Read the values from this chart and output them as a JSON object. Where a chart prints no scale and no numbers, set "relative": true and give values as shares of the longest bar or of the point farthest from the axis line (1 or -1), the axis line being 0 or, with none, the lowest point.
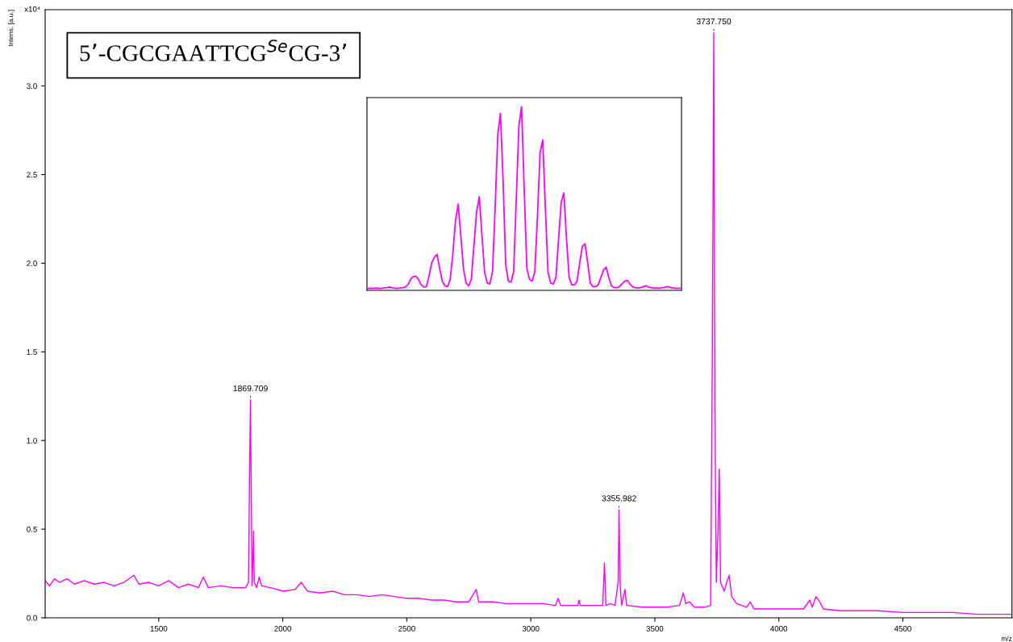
{
  "chart_data": [
    {
      "type": "line",
      "xlabel": "m/z",
      "ylabel": "Intens. [a.u.]",
      "annotations": [
        "5’-CGCGAATTCG$^{Se}$CG-3’",
        "x10⁴",
        {
          "text": "1869.709",
          "x": 1869.709,
          "y": 1.23
        },
        {
          "text": "3355.982",
          "x": 3355.982,
          "y": 0.61
        },
        {
          "text": "3737.750",
          "x": 3737.75,
          "y": 3.3
        }
      ],
      "xlim": [
        1042,
        4940
      ],
      "ylim": [
        0,
        3.43
      ],
      "xticks": [
        1500,
        2000,
        2500,
        3000,
        3500,
        4000,
        4500
      ],
      "yticks": [
        {
          "value": 0,
          "label": "0.0"
        },
        {
          "value": 0.5,
          "label": "0.5"
        },
        {
          "value": 1.0,
          "label": "1.0"
        },
        {
          "value": 1.5,
          "label": "1.5"
        },
        {
          "value": 2.0,
          "label": "2.0"
        },
        {
          "value": 2.5,
          "label": "2.5"
        },
        {
          "value": 3.0,
          "label": "3.0"
        }
      ],
      "series": [
        {
          "color": "#ff00ff",
          "x": [
            1042,
            1060,
            1080,
            1100,
            1130,
            1160,
            1200,
            1240,
            1280,
            1320,
            1360,
            1400,
            1420,
            1460,
            1500,
            1540,
            1580,
            1620,
            1660,
            1680,
            1700,
            1750,
            1800,
            1850,
            1862,
            1866,
            1869.709,
            1873,
            1876,
            1879,
            1882,
            1885,
            1895,
            1905,
            1915,
            1950,
            2000,
            2050,
            2075,
            2100,
            2150,
            2200,
            2250,
            2300,
            2350,
            2400,
            2450,
            2500,
            2550,
            2600,
            2650,
            2700,
            2750,
            2780,
            2790,
            2850,
            2900,
            2950,
            3000,
            3050,
            3100,
            3110,
            3120,
            3190,
            3195,
            3200,
            3250,
            3290,
            3297,
            3303,
            3320,
            3340,
            3352,
            3355.982,
            3360,
            3366,
            3380,
            3386,
            3450,
            3500,
            3550,
            3600,
            3615,
            3625,
            3640,
            3660,
            3700,
            3725,
            3732,
            3737.75,
            3742,
            3748,
            3755,
            3760,
            3765,
            3780,
            3790,
            3800,
            3810,
            3830,
            3870,
            3885,
            3900,
            3950,
            4000,
            4050,
            4100,
            4125,
            4135,
            4150,
            4165,
            4180,
            4250,
            4300,
            4400,
            4500,
            4600,
            4700,
            4800,
            4940
          ],
          "values": [
            0.21,
            0.18,
            0.22,
            0.2,
            0.22,
            0.19,
            0.21,
            0.19,
            0.2,
            0.18,
            0.2,
            0.24,
            0.19,
            0.2,
            0.18,
            0.21,
            0.17,
            0.19,
            0.17,
            0.23,
            0.17,
            0.18,
            0.17,
            0.17,
            0.2,
            0.8,
            1.23,
            0.7,
            0.18,
            0.3,
            0.49,
            0.2,
            0.17,
            0.23,
            0.18,
            0.17,
            0.15,
            0.16,
            0.2,
            0.15,
            0.14,
            0.15,
            0.13,
            0.13,
            0.12,
            0.13,
            0.12,
            0.11,
            0.11,
            0.1,
            0.1,
            0.09,
            0.09,
            0.16,
            0.09,
            0.09,
            0.08,
            0.08,
            0.08,
            0.08,
            0.07,
            0.11,
            0.07,
            0.07,
            0.1,
            0.07,
            0.07,
            0.07,
            0.31,
            0.07,
            0.08,
            0.07,
            0.2,
            0.61,
            0.2,
            0.07,
            0.16,
            0.07,
            0.06,
            0.06,
            0.06,
            0.07,
            0.14,
            0.08,
            0.09,
            0.06,
            0.06,
            0.07,
            1.5,
            3.3,
            1.2,
            0.2,
            0.5,
            0.84,
            0.2,
            0.15,
            0.2,
            0.24,
            0.12,
            0.08,
            0.06,
            0.09,
            0.05,
            0.05,
            0.05,
            0.05,
            0.05,
            0.1,
            0.06,
            0.12,
            0.09,
            0.05,
            0.04,
            0.04,
            0.04,
            0.03,
            0.03,
            0.03,
            0.02,
            0.02
          ]
        }
      ]
    },
    {
      "type": "line",
      "relative": true,
      "categories": [
        null,
        null,
        null,
        null,
        null,
        null,
        null,
        null,
        null,
        null,
        null,
        null,
        null,
        null,
        null,
        null,
        null,
        null,
        null,
        null,
        null,
        null,
        null,
        null,
        null,
        null,
        null,
        null,
        null,
        null,
        null,
        null,
        null,
        null,
        null,
        null,
        null,
        null,
        null,
        null,
        null,
        null,
        null,
        null,
        null,
        null,
        null,
        null,
        null,
        null,
        null,
        null,
        null,
        null,
        null,
        null,
        null,
        null,
        null,
        null,
        null,
        null,
        null,
        null,
        null,
        null,
        null,
        null,
        null,
        null,
        null,
        null,
        null,
        null,
        null,
        null,
        null,
        null,
        null,
        null,
        null,
        null,
        null,
        null,
        null,
        null,
        null,
        null,
        null,
        null,
        null,
        null,
        null,
        null,
        null,
        null,
        null,
        null,
        null,
        null,
        null,
        null,
        null,
        null,
        null,
        null,
        null,
        null,
        null,
        null,
        null,
        null,
        null,
        null,
        null,
        null,
        null,
        null,
        null
      ],
      "series": [
        {
          "color": "#ff00ff",
          "values": [
            0.01,
            0.012,
            0.01,
            0.012,
            0.011,
            0.01,
            0.014,
            0.015,
            0.018,
            0.014,
            0.012,
            0.01,
            0.013,
            0.015,
            0.018,
            0.03,
            0.06,
            0.075,
            0.077,
            0.06,
            0.03,
            0.018,
            0.02,
            0.08,
            0.15,
            0.18,
            0.196,
            0.12,
            0.05,
            0.025,
            0.02,
            0.06,
            0.2,
            0.38,
            0.47,
            0.3,
            0.12,
            0.04,
            0.025,
            0.06,
            0.25,
            0.43,
            0.51,
            0.3,
            0.1,
            0.04,
            0.035,
            0.1,
            0.45,
            0.85,
            0.964,
            0.6,
            0.14,
            0.05,
            0.045,
            0.1,
            0.5,
            0.9,
            1.0,
            0.55,
            0.12,
            0.06,
            0.05,
            0.1,
            0.4,
            0.75,
            0.82,
            0.45,
            0.1,
            0.04,
            0.035,
            0.07,
            0.28,
            0.48,
            0.53,
            0.28,
            0.07,
            0.03,
            0.03,
            0.05,
            0.15,
            0.24,
            0.254,
            0.15,
            0.04,
            0.02,
            0.02,
            0.03,
            0.07,
            0.11,
            0.126,
            0.07,
            0.025,
            0.015,
            0.015,
            0.02,
            0.035,
            0.05,
            0.054,
            0.035,
            0.02,
            0.015,
            0.013,
            0.015,
            0.02,
            0.025,
            0.018,
            0.015,
            0.012,
            0.013,
            0.011,
            0.014,
            0.016,
            0.02,
            0.018,
            0.013,
            0.012,
            0.01,
            0.012
          ]
        }
      ]
    }
  ]
}
